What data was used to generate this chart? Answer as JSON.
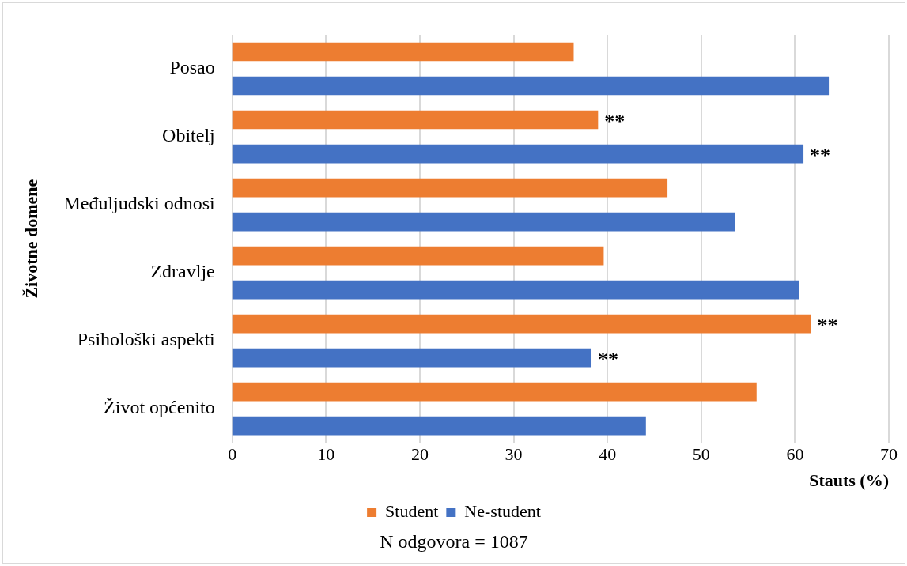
{
  "chart_data": {
    "type": "bar",
    "orientation": "horizontal",
    "categories": [
      "Posao",
      "Obitelj",
      "Međuljudski odnosi",
      "Zdravlje",
      "Psihološki aspekti",
      "Život općenito"
    ],
    "series": [
      {
        "name": "Student",
        "color": "#ed7d31",
        "values": [
          36.4,
          39.0,
          46.4,
          39.6,
          61.7,
          55.9
        ],
        "value_labels": [
          null,
          "**",
          null,
          null,
          "**",
          null
        ]
      },
      {
        "name": "Ne-student",
        "color": "#4472c4",
        "values": [
          63.6,
          60.9,
          53.6,
          60.4,
          38.3,
          44.1
        ],
        "value_labels": [
          null,
          "**",
          null,
          null,
          "**",
          null
        ]
      }
    ],
    "xlabel": "Stauts (%)",
    "ylabel": "Životne domene",
    "xlim": [
      0,
      70
    ],
    "xticks": [
      0,
      10,
      20,
      30,
      40,
      50,
      60,
      70
    ],
    "grid": "x",
    "legend": "bottom",
    "annotations": [
      "N odgovora = 1087"
    ]
  }
}
